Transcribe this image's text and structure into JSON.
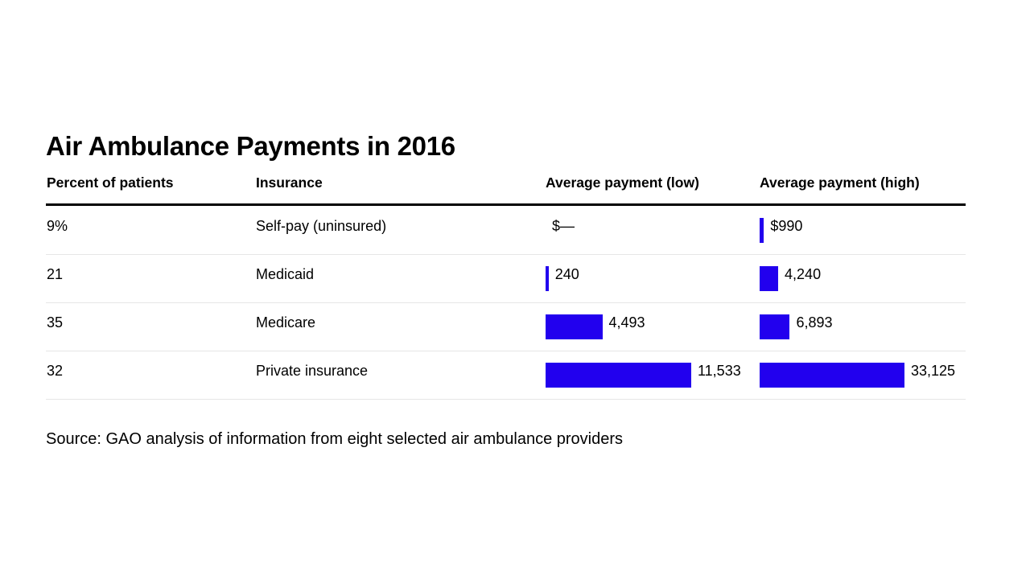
{
  "title": "Air Ambulance Payments in 2016",
  "headers": {
    "percent": "Percent of patients",
    "insurance": "Insurance",
    "low": "Average payment (low)",
    "high": "Average payment (high)"
  },
  "source": "Source: GAO analysis of information from eight selected air ambulance providers",
  "colors": {
    "bar": "#2200ee",
    "rule": "#000000",
    "row_rule": "#e6e6e6"
  },
  "chart_data": {
    "type": "table",
    "title": "Air Ambulance Payments in 2016",
    "columns": [
      "Percent of patients",
      "Insurance",
      "Average payment (low)",
      "Average payment (high)"
    ],
    "rows": [
      {
        "percent": "9%",
        "insurance": "Self-pay (uninsured)",
        "low": 0,
        "low_label": "$—",
        "high": 990,
        "high_label": "$990"
      },
      {
        "percent": "21",
        "insurance": "Medicaid",
        "low": 240,
        "low_label": "240",
        "high": 4240,
        "high_label": "4,240"
      },
      {
        "percent": "35",
        "insurance": "Medicare",
        "low": 4493,
        "low_label": "4,493",
        "high": 6893,
        "high_label": "6,893"
      },
      {
        "percent": "32",
        "insurance": "Private insurance",
        "low": 11533,
        "low_label": "11,533",
        "high": 33125,
        "high_label": "33,125"
      }
    ]
  }
}
